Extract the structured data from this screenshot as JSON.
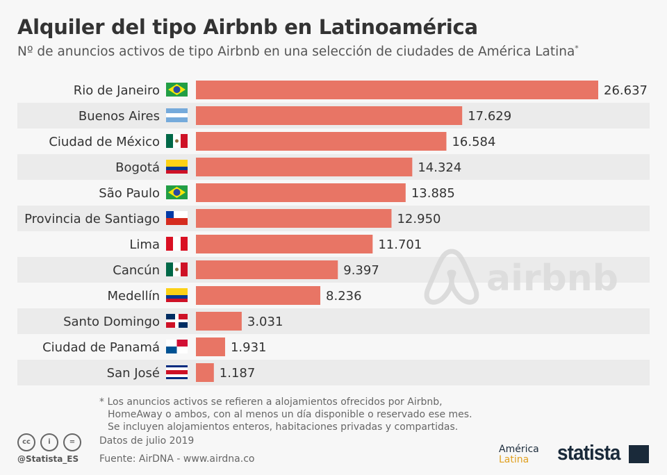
{
  "title": "Alquiler del tipo Airbnb en Latinoamérica",
  "subtitle": "Nº de anuncios activos de tipo Airbnb en una selección de ciudades de América Latina",
  "subtitle_mark": "*",
  "watermark": "airbnb",
  "colors": {
    "bar": "#e87565",
    "band": "#ebebeb",
    "text": "#333333"
  },
  "chart_data": {
    "type": "bar",
    "orientation": "horizontal",
    "categories": [
      "Rio de Janeiro",
      "Buenos Aires",
      "Ciudad de México",
      "Bogotá",
      "São Paulo",
      "Provincia de Santiago",
      "Lima",
      "Cancún",
      "Medellín",
      "Santo Domingo",
      "Ciudad de Panamá",
      "San José"
    ],
    "flags": [
      "br",
      "ar",
      "mx",
      "co",
      "br",
      "cl",
      "pe",
      "mx",
      "co",
      "do",
      "pa",
      "cr"
    ],
    "values": [
      26637,
      17629,
      16584,
      14324,
      13885,
      12950,
      11701,
      9397,
      8236,
      3031,
      1931,
      1187
    ],
    "labels": [
      "26.637",
      "17.629",
      "16.584",
      "14.324",
      "13.885",
      "12.950",
      "11.701",
      "9.397",
      "8.236",
      "3.031",
      "1.931",
      "1.187"
    ],
    "xlim": [
      0,
      26637
    ],
    "grid": false
  },
  "footer": {
    "note": [
      "* Los anuncios activos se refieren a alojamientos ofrecidos por Airbnb,",
      "HomeAway o ambos, con al menos un día disponible o reservado ese mes.",
      "Se incluyen alojamientos enteros, habitaciones privadas y compartidas."
    ],
    "date": "Datos de julio 2019",
    "source": "Fuente: AirDNA - www.airdna.co",
    "handle": "@Statista_ES",
    "license": [
      "cc",
      "i",
      "="
    ],
    "partner": [
      "América",
      "Latina"
    ],
    "brand": "statista"
  }
}
